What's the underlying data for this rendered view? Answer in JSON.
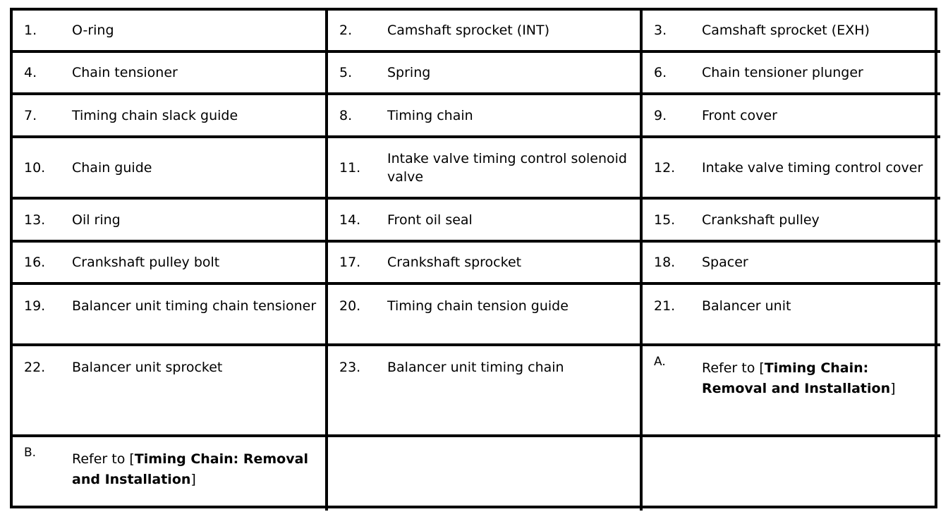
{
  "rows": [
    [
      {
        "num": "1.",
        "text": "O-ring"
      },
      {
        "num": "2.",
        "text": "Camshaft sprocket (INT)"
      },
      {
        "num": "3.",
        "text": "Camshaft sprocket (EXH)"
      }
    ],
    [
      {
        "num": "4.",
        "text": "Chain tensioner"
      },
      {
        "num": "5.",
        "text": "Spring"
      },
      {
        "num": "6.",
        "text": "Chain tensioner plunger"
      }
    ],
    [
      {
        "num": "7.",
        "text": "Timing chain slack guide"
      },
      {
        "num": "8.",
        "text": "Timing chain"
      },
      {
        "num": "9.",
        "text": "Front cover"
      }
    ],
    [
      {
        "num": "10.",
        "text": "Chain guide"
      },
      {
        "num": "11.",
        "text": "Intake valve timing control solenoid valve"
      },
      {
        "num": "12.",
        "text": "Intake valve timing control cover"
      }
    ],
    [
      {
        "num": "13.",
        "text": "Oil ring"
      },
      {
        "num": "14.",
        "text": "Front oil seal"
      },
      {
        "num": "15.",
        "text": "Crankshaft pulley"
      }
    ],
    [
      {
        "num": "16.",
        "text": "Crankshaft pulley bolt"
      },
      {
        "num": "17.",
        "text": "Crankshaft sprocket"
      },
      {
        "num": "18.",
        "text": "Spacer"
      }
    ],
    [
      {
        "num": "19.",
        "text": "Balancer unit timing chain tensioner"
      },
      {
        "num": "20.",
        "text": "Timing chain tension guide"
      },
      {
        "num": "21.",
        "text": "Balancer unit"
      }
    ],
    [
      {
        "num": "22.",
        "text": "Balancer unit sprocket"
      },
      {
        "num": "23.",
        "text": "Balancer unit timing chain"
      },
      {
        "num": "A.",
        "refer_prefix": "Refer to [",
        "link": "Timing Chain: Removal and Installation",
        "refer_suffix": "]"
      }
    ],
    [
      {
        "num": "B.",
        "refer_prefix": "Refer to [",
        "link": "Timing Chain: Removal and Installation",
        "refer_suffix": "]"
      },
      {},
      {}
    ]
  ]
}
